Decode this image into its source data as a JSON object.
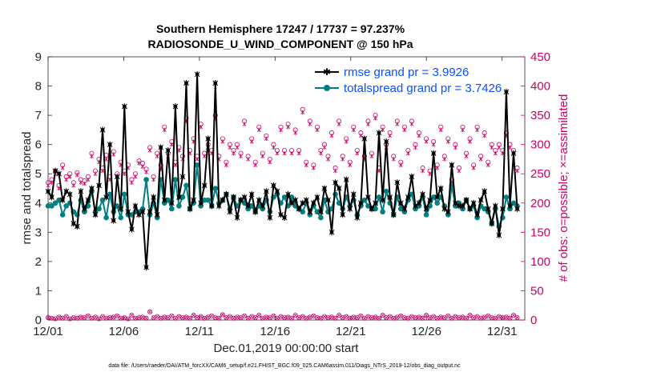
{
  "chart_data": {
    "type": "line",
    "title_line1": "Southern Hemisphere 17247 / 17737 = 97.237%",
    "title_line2": "RADIOSONDE_U_WIND_COMPONENT @ 150 hPa",
    "xlabel": "Dec.01,2019 00:00:00 start",
    "ylabel": "rmse and totalspread",
    "ylabel_right": "# of obs: o=possible; ×=assimilated",
    "footer": "data file: /Users/raeder/DAI/ATM_forcXX/CAM6_setup/f.e21.FHIST_BGC.f09_025.CAM6assim.011/Diags_NTrS_2019-12/obs_diag_output.nc",
    "xlim": [
      0,
      31.5
    ],
    "ylim": [
      0,
      9
    ],
    "ylim_right": [
      0,
      450
    ],
    "x_ticks": [
      0,
      5,
      10,
      15,
      20,
      25,
      30
    ],
    "x_tick_labels": [
      "12/01",
      "12/06",
      "12/11",
      "12/16",
      "12/21",
      "12/26",
      "12/31"
    ],
    "y_ticks": [
      0,
      1,
      2,
      3,
      4,
      5,
      6,
      7,
      8,
      9
    ],
    "y_tick_labels": [
      "0",
      "1",
      "2",
      "3",
      "4",
      "5",
      "6",
      "7",
      "8",
      "9"
    ],
    "y_ticks_right": [
      0,
      50,
      100,
      150,
      200,
      250,
      300,
      350,
      400,
      450
    ],
    "y_tick_labels_right": [
      "0",
      "50",
      "100",
      "150",
      "200",
      "250",
      "300",
      "350",
      "400",
      "450"
    ],
    "colors": {
      "rmse": "#000000",
      "spread": "#008080",
      "obs": "#cc0066",
      "legend_text": "#0a50ff"
    },
    "series": [
      {
        "name": "rmse grand pr = 3.9926",
        "values": [
          4.4,
          4.2,
          5.1,
          5.0,
          4.1,
          4.4,
          4.3,
          3.3,
          3.2,
          4.4,
          3.8,
          4.1,
          4.5,
          3.6,
          4.6,
          6.5,
          4.2,
          6.0,
          3.4,
          4.9,
          3.8,
          7.3,
          3.7,
          3.1,
          3.9,
          3.6,
          3.7,
          1.8,
          3.7,
          4.2,
          3.6,
          5.9,
          4.1,
          5.8,
          4.0,
          7.3,
          4.2,
          4.9,
          8.1,
          3.8,
          4.1,
          8.4,
          4.0,
          4.6,
          6.2,
          3.9,
          8.1,
          3.9,
          4.1,
          4.3,
          3.7,
          4.2,
          3.5,
          4.1,
          4.2,
          3.9,
          4.3,
          3.7,
          4.1,
          3.9,
          4.4,
          3.5,
          4.6,
          4.4,
          3.6,
          3.5,
          4.3,
          4.0,
          4.1,
          3.8,
          4.0,
          4.1,
          3.7,
          4.0,
          4.2,
          3.7,
          4.5,
          4.1,
          3.0,
          4.7,
          4.5,
          3.6,
          4.8,
          3.8,
          4.3,
          3.5,
          4.0,
          6.2,
          4.2,
          3.8,
          4.0,
          6.4,
          4.1,
          6.1,
          4.2,
          3.6,
          4.7,
          4.0,
          3.8,
          4.2,
          4.9,
          3.9,
          4.0,
          4.3,
          3.8,
          4.1,
          5.7,
          4.2,
          4.5,
          3.8,
          3.7,
          5.3,
          4.0,
          3.9,
          3.9,
          4.1,
          3.8,
          4.0,
          3.6,
          4.1,
          4.4,
          3.8,
          3.3,
          3.9,
          2.9,
          3.8,
          7.8,
          3.9,
          5.7,
          3.8
        ]
      },
      {
        "name": "totalspread grand pr = 3.7426",
        "values": [
          3.9,
          3.9,
          4.0,
          4.1,
          3.6,
          3.9,
          4.0,
          3.7,
          3.6,
          4.1,
          3.7,
          3.9,
          4.4,
          3.7,
          3.8,
          4.1,
          3.5,
          4.3,
          3.7,
          3.9,
          3.5,
          4.3,
          3.6,
          3.6,
          3.7,
          3.7,
          3.8,
          4.8,
          3.6,
          4.0,
          3.5,
          4.8,
          4.0,
          4.1,
          3.8,
          4.8,
          3.9,
          4.2,
          4.6,
          3.8,
          4.0,
          5.3,
          3.9,
          4.1,
          4.1,
          3.9,
          4.5,
          4.0,
          4.1,
          4.3,
          3.8,
          4.2,
          3.9,
          4.1,
          4.0,
          3.8,
          3.9,
          3.7,
          3.9,
          3.8,
          4.1,
          3.7,
          4.2,
          4.3,
          4.0,
          4.2,
          3.9,
          4.2,
          3.9,
          3.8,
          3.7,
          4.0,
          3.6,
          3.9,
          3.7,
          3.5,
          4.1,
          3.7,
          3.8,
          4.3,
          4.0,
          3.8,
          4.2,
          3.9,
          4.1,
          3.6,
          3.9,
          4.1,
          3.9,
          3.8,
          3.8,
          4.2,
          3.7,
          4.4,
          4.0,
          3.6,
          4.2,
          3.8,
          3.7,
          4.1,
          4.3,
          3.8,
          3.9,
          4.2,
          3.6,
          3.9,
          4.2,
          4.0,
          4.2,
          3.9,
          3.6,
          4.6,
          3.9,
          4.0,
          3.8,
          4.1,
          3.8,
          3.9,
          3.5,
          3.9,
          3.8,
          3.7,
          3.3,
          3.8,
          3.2,
          3.5,
          4.2,
          3.8,
          4.0,
          3.9
        ]
      }
    ],
    "obs_possible": [
      235,
      240,
      255,
      230,
      265,
      245,
      250,
      235,
      252,
      240,
      238,
      245,
      285,
      255,
      275,
      260,
      282,
      245,
      288,
      250,
      270,
      255,
      265,
      240,
      250,
      272,
      268,
      258,
      295,
      245,
      285,
      265,
      330,
      285,
      305,
      270,
      295,
      280,
      345,
      290,
      310,
      280,
      335,
      285,
      300,
      290,
      350,
      280,
      310,
      270,
      300,
      290,
      300,
      285,
      340,
      280,
      310,
      270,
      330,
      285,
      315,
      275,
      300,
      290,
      330,
      290,
      335,
      290,
      325,
      290,
      360,
      270,
      340,
      265,
      330,
      290,
      300,
      280,
      320,
      260,
      340,
      280,
      310,
      270,
      330,
      290,
      320,
      280,
      340,
      285,
      350,
      260,
      330,
      300,
      320,
      280,
      340,
      270,
      330,
      290,
      340,
      300,
      320,
      260,
      310,
      255,
      305,
      265,
      330,
      280,
      310,
      240,
      300,
      260,
      330,
      285,
      310,
      265,
      330,
      280,
      320,
      270,
      300,
      290,
      300,
      290,
      320,
      300,
      290,
      260
    ],
    "obs_assimilated": [
      230,
      235,
      250,
      225,
      260,
      240,
      245,
      230,
      248,
      235,
      233,
      240,
      280,
      250,
      270,
      255,
      275,
      240,
      283,
      245,
      265,
      250,
      260,
      235,
      245,
      268,
      262,
      253,
      290,
      240,
      280,
      258,
      325,
      280,
      300,
      265,
      290,
      275,
      340,
      285,
      305,
      275,
      330,
      280,
      295,
      285,
      345,
      275,
      305,
      265,
      295,
      285,
      295,
      280,
      335,
      275,
      305,
      265,
      325,
      280,
      310,
      270,
      295,
      285,
      325,
      285,
      330,
      285,
      320,
      285,
      355,
      265,
      335,
      260,
      325,
      285,
      295,
      275,
      315,
      255,
      335,
      275,
      305,
      265,
      325,
      285,
      315,
      275,
      335,
      280,
      345,
      255,
      325,
      295,
      315,
      275,
      335,
      265,
      325,
      285,
      335,
      295,
      315,
      255,
      305,
      250,
      300,
      260,
      325,
      275,
      305,
      235,
      295,
      255,
      325,
      280,
      305,
      260,
      325,
      275,
      315,
      265,
      295,
      285,
      295,
      285,
      315,
      295,
      285,
      255
    ],
    "obs_bottom": [
      4,
      3,
      2,
      5,
      3,
      6,
      2,
      4,
      3,
      5,
      4,
      7,
      3,
      5,
      2,
      6,
      3,
      4,
      5,
      7,
      3,
      4,
      2,
      8,
      3,
      4,
      5,
      3,
      14,
      4,
      6,
      3,
      5,
      4,
      7,
      3,
      6,
      4,
      5,
      3,
      8,
      4,
      6,
      3,
      5,
      7,
      4,
      3,
      9,
      4,
      6,
      3,
      5,
      4,
      7,
      3,
      6,
      4,
      8,
      3,
      5,
      4,
      7,
      3,
      6,
      4,
      5,
      3,
      8,
      4,
      6,
      3,
      5,
      7,
      4,
      3,
      6,
      4,
      5,
      3,
      8,
      4,
      6,
      3,
      5,
      4,
      7,
      3,
      6,
      4,
      5,
      3,
      8,
      4,
      6,
      3,
      5,
      7,
      4,
      3,
      6,
      4,
      5,
      3,
      8,
      4,
      6,
      3,
      5,
      4,
      7,
      3,
      6,
      4,
      5,
      3,
      8,
      4,
      6,
      3,
      5,
      7,
      4,
      3,
      6,
      4,
      5,
      3,
      8,
      4
    ]
  },
  "legend": {
    "rmse_label": "rmse grand pr = 3.9926",
    "spread_label": "totalspread grand pr = 3.7426",
    "location": "top-right"
  }
}
